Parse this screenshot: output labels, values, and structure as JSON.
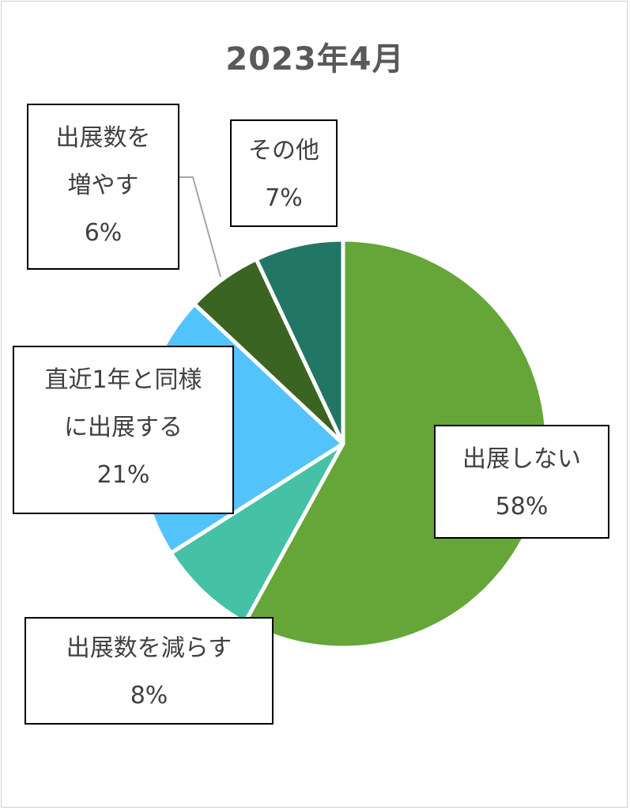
{
  "chart_data": {
    "type": "pie",
    "title": "2023年4月",
    "start_angle_deg": 0,
    "direction": "clockwise",
    "slices": [
      {
        "label": "出展しない",
        "label_lines": [
          "出展しない"
        ],
        "value": 58,
        "value_label": "58%",
        "color": "#66a537"
      },
      {
        "label": "出展数を減らす",
        "label_lines": [
          "出展数を減らす"
        ],
        "value": 8,
        "value_label": "8%",
        "color": "#45c1a6"
      },
      {
        "label": "直近1年と同様に出展する",
        "label_lines": [
          "直近1年と同様",
          "に出展する"
        ],
        "value": 21,
        "value_label": "21%",
        "color": "#53c3fb"
      },
      {
        "label": "出展数を増やす",
        "label_lines": [
          "出展数を",
          "増やす"
        ],
        "value": 6,
        "value_label": "6%",
        "color": "#3b6423"
      },
      {
        "label": "その他",
        "label_lines": [
          "その他"
        ],
        "value": 7,
        "value_label": "7%",
        "color": "#227665"
      }
    ]
  }
}
